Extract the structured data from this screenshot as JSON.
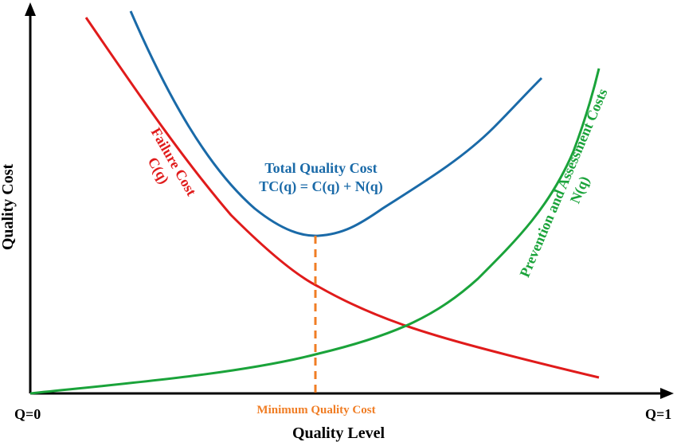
{
  "axes": {
    "y_label": "Quality Cost",
    "x_label": "Quality Level",
    "x_start_label": "Q=0",
    "x_end_label": "Q=1"
  },
  "curves": {
    "failure": {
      "line1": "Failure Cost",
      "line2": "C(q)",
      "color": "#e01b1b"
    },
    "total": {
      "line1": "Total Quality Cost",
      "line2": "TC(q) = C(q) + N(q)",
      "color": "#1a6aa8"
    },
    "prevention": {
      "line1": "Prevention and Assessment Costs",
      "line2": "N(q)",
      "color": "#1aa33a"
    }
  },
  "minimum": {
    "label": "Minimum Quality Cost",
    "color": "#f07d24"
  },
  "colors": {
    "axis": "#000000"
  }
}
